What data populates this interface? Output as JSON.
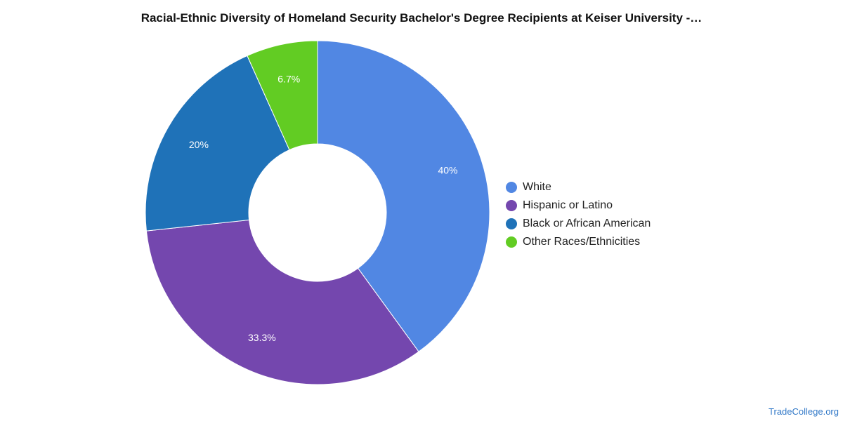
{
  "chart_data": {
    "type": "pie",
    "title": "Racial-Ethnic Diversity of Homeland Security Bachelor's Degree Recipients at Keiser University -…",
    "slices": [
      {
        "label": "White",
        "value": 40,
        "display": "40%",
        "color": "#5187e3"
      },
      {
        "label": "Hispanic or Latino",
        "value": 33.3,
        "display": "33.3%",
        "color": "#7447ae"
      },
      {
        "label": "Black or African American",
        "value": 20,
        "display": "20%",
        "color": "#1f72b8"
      },
      {
        "label": "Other Races/Ethnicities",
        "value": 6.7,
        "display": "6.7%",
        "color": "#62cc23"
      }
    ],
    "legend_position": "right"
  },
  "source": "TradeCollege.org"
}
